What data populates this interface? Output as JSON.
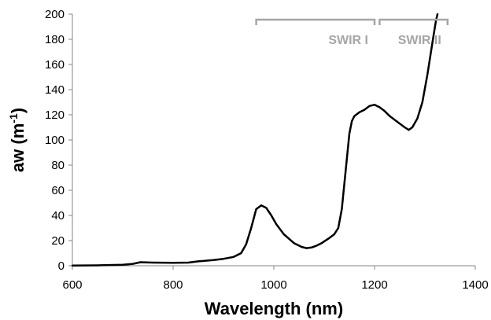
{
  "chart_data": {
    "type": "line",
    "title": "",
    "xlabel": "Wavelength (nm)",
    "ylabel": {
      "base": "aw (m",
      "sup": "-1",
      "close": ")"
    },
    "xlim": [
      600,
      1400
    ],
    "ylim": [
      0,
      200
    ],
    "xticks": [
      600,
      800,
      1000,
      1200,
      1400
    ],
    "yticks": [
      0,
      20,
      40,
      60,
      80,
      100,
      120,
      140,
      160,
      180,
      200
    ],
    "grid": false,
    "legend": "none",
    "series": [
      {
        "color": "#000000",
        "x": [
          600,
          650,
          700,
          720,
          735,
          760,
          800,
          830,
          850,
          880,
          900,
          920,
          935,
          945,
          955,
          965,
          975,
          985,
          995,
          1005,
          1020,
          1040,
          1055,
          1065,
          1075,
          1085,
          1095,
          1110,
          1120,
          1128,
          1135,
          1140,
          1145,
          1150,
          1155,
          1160,
          1170,
          1180,
          1190,
          1200,
          1210,
          1220,
          1230,
          1240,
          1250,
          1260,
          1268,
          1275,
          1285,
          1295,
          1305,
          1312,
          1318,
          1322,
          1325
        ],
        "y": [
          0.2,
          0.3,
          0.8,
          1.5,
          2.8,
          2.5,
          2.3,
          2.5,
          3.5,
          4.5,
          5.5,
          7,
          10,
          17,
          30,
          45,
          48,
          46,
          40,
          33,
          25,
          18,
          15,
          14,
          14.5,
          16,
          18,
          22,
          25,
          30,
          45,
          65,
          85,
          105,
          115,
          119,
          122,
          124,
          127,
          128,
          126,
          123,
          119,
          116,
          113,
          110,
          108,
          110,
          117,
          130,
          152,
          170,
          185,
          195,
          200
        ]
      }
    ],
    "annotations": [
      {
        "label": "SWIR I",
        "x_start": 965,
        "x_end": 1200,
        "color": "#a6a6a6"
      },
      {
        "label": "SWIR II",
        "x_start": 1210,
        "x_end": 1345,
        "color": "#a6a6a6"
      }
    ]
  }
}
